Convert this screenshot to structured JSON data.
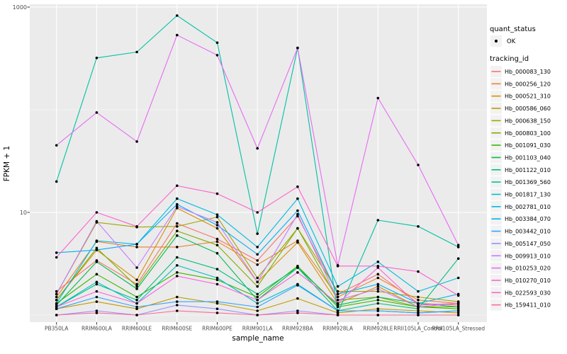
{
  "figure": {
    "background": "#ffffff",
    "panel_background": "#EBEBEB",
    "gridline_color": "#FFFFFF",
    "tick_color": "#333333",
    "tick_label_color": "#4D4D4D",
    "point_color": "#000000"
  },
  "legend": {
    "quant_status": {
      "title": "quant_status",
      "items": [
        {
          "label": "OK",
          "symbol": "point"
        }
      ]
    },
    "tracking_id": {
      "title": "tracking_id"
    }
  },
  "chart_data": {
    "type": "line",
    "title": "",
    "xlabel": "sample_name",
    "ylabel": "FPKM + 1",
    "x_type": "categorical",
    "y_scale": "log10",
    "y_tick_labels": [
      "10",
      "1000"
    ],
    "y_ticks": [
      10,
      1000
    ],
    "y_minor_gridlines": [
      1,
      100
    ],
    "ylim": [
      0.9,
      1100
    ],
    "grid": true,
    "legend_position": "right",
    "point_shape": "filled-circle-black",
    "categories": [
      "PB350LA",
      "RRIM600LA",
      "RRIM600LE",
      "RRIM600SE",
      "RRIM600PE",
      "RRIM901LA",
      "RRIM928BA",
      "RRIM928LA",
      "RRIM928LE",
      "RRII105LA_Control",
      "RRII105LA_Stressed"
    ],
    "series": [
      {
        "tracking_id": "Hb_000083_130",
        "quant_status": "OK",
        "color": "#F8766D",
        "values": [
          1.7,
          3.4,
          2.0,
          7.8,
          5.5,
          3.4,
          9.2,
          1.6,
          2.5,
          1.3,
          1.25
        ]
      },
      {
        "tracking_id": "Hb_000256_120",
        "quant_status": "OK",
        "color": "#EA8331",
        "values": [
          1.5,
          5.2,
          4.6,
          4.6,
          5.2,
          3.1,
          5.3,
          1.5,
          2.3,
          1.4,
          1.3
        ]
      },
      {
        "tracking_id": "Hb_000521_310",
        "quant_status": "OK",
        "color": "#D89000",
        "values": [
          1.4,
          4.3,
          2.2,
          11.0,
          7.0,
          2.1,
          5.1,
          1.3,
          1.9,
          1.2,
          1.3
        ]
      },
      {
        "tracking_id": "Hb_000586_060",
        "quant_status": "OK",
        "color": "#C09B00",
        "values": [
          1.15,
          1.35,
          1.15,
          1.5,
          1.3,
          1.1,
          1.45,
          1.05,
          1.15,
          1.1,
          1.05
        ]
      },
      {
        "tracking_id": "Hb_000638_150",
        "quant_status": "OK",
        "color": "#A3A500",
        "values": [
          1.6,
          8.0,
          7.2,
          7.3,
          9.0,
          2.3,
          7.0,
          1.7,
          1.7,
          1.5,
          1.35
        ]
      },
      {
        "tracking_id": "Hb_000803_100",
        "quant_status": "OK",
        "color": "#7CAE00",
        "values": [
          1.4,
          4.5,
          1.9,
          6.6,
          4.8,
          1.9,
          7.0,
          1.4,
          1.5,
          1.2,
          1.2
        ]
      },
      {
        "tracking_id": "Hb_001091_030",
        "quant_status": "OK",
        "color": "#39B600",
        "values": [
          1.3,
          2.5,
          1.5,
          2.6,
          2.2,
          1.5,
          3.0,
          1.2,
          1.4,
          1.2,
          1.15
        ]
      },
      {
        "tracking_id": "Hb_001103_040",
        "quant_status": "OK",
        "color": "#00BB4E",
        "values": [
          1.25,
          3.3,
          1.8,
          5.95,
          4.0,
          1.4,
          2.9,
          1.25,
          1.5,
          1.3,
          1.2
        ]
      },
      {
        "tracking_id": "Hb_001122_010",
        "quant_status": "OK",
        "color": "#00BF7D",
        "values": [
          1.2,
          2.0,
          1.4,
          3.65,
          2.8,
          1.6,
          2.9,
          1.1,
          1.3,
          1.15,
          3.55
        ]
      },
      {
        "tracking_id": "Hb_001369_560",
        "quant_status": "OK",
        "color": "#00C1A3",
        "values": [
          20,
          320,
          365,
          826,
          450,
          6.2,
          400,
          1.05,
          8.4,
          7.3,
          4.6
        ]
      },
      {
        "tracking_id": "Hb_001817_130",
        "quant_status": "OK",
        "color": "#00BFC4",
        "values": [
          1.2,
          2.1,
          1.3,
          3.05,
          2.3,
          1.3,
          2.0,
          1.1,
          1.1,
          1.05,
          1.1
        ]
      },
      {
        "tracking_id": "Hb_002781_010",
        "quant_status": "OK",
        "color": "#00BAE0",
        "values": [
          1.3,
          5.3,
          4.9,
          13.6,
          9.5,
          4.6,
          13.6,
          1.9,
          3.3,
          1.7,
          2.3
        ]
      },
      {
        "tracking_id": "Hb_003384_070",
        "quant_status": "OK",
        "color": "#00B0F6",
        "values": [
          4.05,
          4.3,
          4.9,
          12.0,
          7.5,
          3.9,
          10.4,
          1.6,
          2.0,
          1.3,
          1.6
        ]
      },
      {
        "tracking_id": "Hb_003442_010",
        "quant_status": "OK",
        "color": "#35A2FF",
        "values": [
          1.15,
          1.5,
          1.2,
          1.35,
          1.35,
          1.2,
          1.95,
          1.1,
          1.1,
          1.05,
          1.1
        ]
      },
      {
        "tracking_id": "Hb_005147_050",
        "quant_status": "OK",
        "color": "#9590FF",
        "values": [
          1.0,
          1.1,
          1.0,
          1.25,
          1.15,
          1.0,
          1.1,
          1.0,
          1.0,
          1.0,
          1.0
        ]
      },
      {
        "tracking_id": "Hb_009913_010",
        "quant_status": "OK",
        "color": "#C77CFF",
        "values": [
          1.6,
          8.2,
          2.9,
          11.4,
          8.0,
          2.1,
          9.6,
          1.4,
          1.8,
          1.2,
          1.3
        ]
      },
      {
        "tracking_id": "Hb_010253_020",
        "quant_status": "OK",
        "color": "#E76BF3",
        "values": [
          45,
          94,
          49,
          533,
          340,
          42,
          400,
          3.05,
          130,
          29,
          4.8
        ]
      },
      {
        "tracking_id": "Hb_010270_010",
        "quant_status": "OK",
        "color": "#FA62DB",
        "values": [
          1.2,
          1.7,
          1.3,
          2.4,
          2.0,
          1.4,
          2.6,
          1.3,
          2.9,
          1.25,
          1.3
        ]
      },
      {
        "tracking_id": "Hb_022593_030",
        "quant_status": "OK",
        "color": "#FF61CC",
        "values": [
          3.65,
          10.0,
          7.3,
          18.2,
          15.2,
          10.0,
          17.8,
          3.0,
          3.0,
          2.65,
          1.55
        ]
      },
      {
        "tracking_id": "Hb_159411_010",
        "quant_status": "OK",
        "color": "#FF6A98",
        "values": [
          1.0,
          1.05,
          1.0,
          1.1,
          1.05,
          1.0,
          1.05,
          1.0,
          1.0,
          1.0,
          1.0
        ]
      }
    ]
  }
}
